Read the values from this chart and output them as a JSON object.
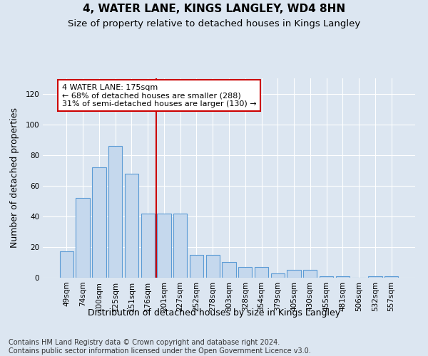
{
  "title": "4, WATER LANE, KINGS LANGLEY, WD4 8HN",
  "subtitle": "Size of property relative to detached houses in Kings Langley",
  "xlabel": "Distribution of detached houses by size in Kings Langley",
  "ylabel": "Number of detached properties",
  "categories": [
    "49sqm",
    "74sqm",
    "100sqm",
    "125sqm",
    "151sqm",
    "176sqm",
    "201sqm",
    "227sqm",
    "252sqm",
    "278sqm",
    "303sqm",
    "328sqm",
    "354sqm",
    "379sqm",
    "405sqm",
    "430sqm",
    "455sqm",
    "481sqm",
    "506sqm",
    "532sqm",
    "557sqm"
  ],
  "values": [
    17,
    52,
    72,
    86,
    68,
    42,
    42,
    42,
    15,
    15,
    10,
    7,
    7,
    3,
    5,
    5,
    1,
    1,
    0,
    1,
    1
  ],
  "bar_color": "#c5d8ed",
  "bar_edge_color": "#5b9bd5",
  "vline_x": 5.5,
  "vline_color": "#cc0000",
  "annotation_text": "4 WATER LANE: 175sqm\n← 68% of detached houses are smaller (288)\n31% of semi-detached houses are larger (130) →",
  "annotation_box_color": "#ffffff",
  "annotation_box_edge_color": "#cc0000",
  "ylim": [
    0,
    130
  ],
  "yticks": [
    0,
    20,
    40,
    60,
    80,
    100,
    120
  ],
  "footer_text": "Contains HM Land Registry data © Crown copyright and database right 2024.\nContains public sector information licensed under the Open Government Licence v3.0.",
  "background_color": "#dce6f1",
  "plot_background_color": "#dce6f1",
  "grid_color": "#ffffff",
  "title_fontsize": 11,
  "subtitle_fontsize": 9.5,
  "label_fontsize": 9,
  "tick_fontsize": 7.5,
  "annotation_fontsize": 8,
  "footer_fontsize": 7
}
